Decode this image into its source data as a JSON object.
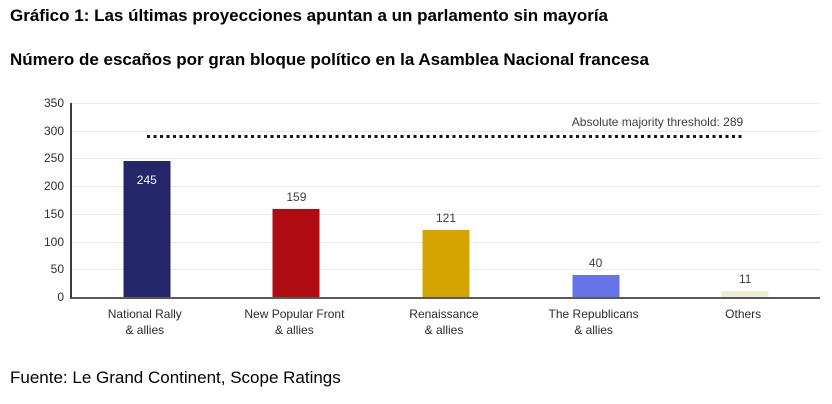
{
  "header": {
    "title": "Gráfico 1: Las últimas proyecciones apuntan a un parlamento sin mayoría",
    "subtitle": "Número de escaños por gran bloque político en la Asamblea Nacional francesa"
  },
  "footer": {
    "source": "Fuente: Le Grand Continent, Scope Ratings"
  },
  "chart_data": {
    "type": "bar",
    "title": "Número de escaños por gran bloque político en la Asamblea Nacional francesa",
    "categories": [
      "National Rally\n& allies",
      "New Popular Front\n& allies",
      "Renaissance\n& allies",
      "The Republicans\n& allies",
      "Others"
    ],
    "values": [
      245,
      159,
      121,
      40,
      11
    ],
    "bar_colors": [
      "#23276a",
      "#ae0c10",
      "#d5a400",
      "#6674e8",
      "#eeecd2"
    ],
    "value_label_positions": [
      "inside",
      "above",
      "above",
      "above",
      "above"
    ],
    "ylim": [
      0,
      350
    ],
    "yticks": [
      0,
      50,
      100,
      150,
      200,
      250,
      300,
      350
    ],
    "grid": true,
    "legend": "none",
    "xlabel": "",
    "ylabel": "",
    "threshold": {
      "value": 289,
      "label": "Absolute majority threshold: 289",
      "line_style": "dotted",
      "color": "#161616"
    }
  },
  "style_colors": {
    "grid": "#e9e9e9",
    "axis_left": "#3a3a3a",
    "axis_bottom": "#595959",
    "tick_text": "#2e2e2e"
  }
}
